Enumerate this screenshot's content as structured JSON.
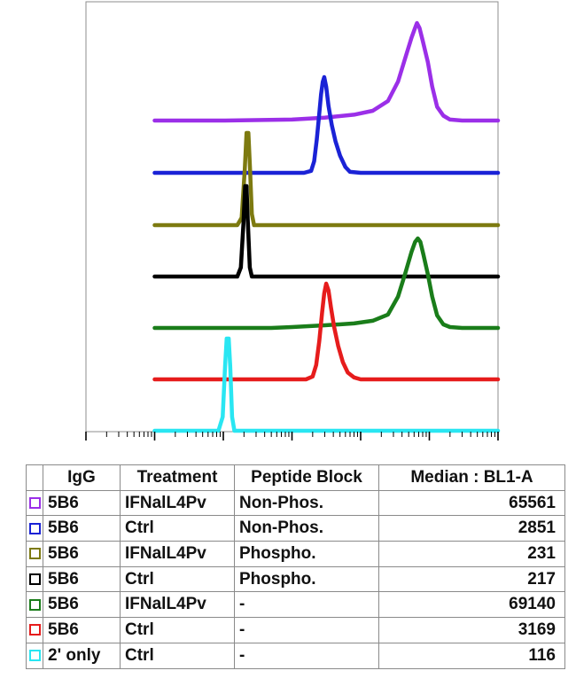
{
  "chart_data": {
    "type": "histogram",
    "scale": "log",
    "xlim": [
      1,
      1000000
    ],
    "xlabel": "",
    "ylabel": "",
    "title": "",
    "series": [
      {
        "igg": "5B6",
        "treatment": "IFNalL4Pv",
        "peptide_block": "Non-Phos.",
        "median": "65561",
        "color": "#9b2fe8",
        "points": [
          [
            10,
            0
          ],
          [
            100,
            0
          ],
          [
            1000,
            0.01
          ],
          [
            3000,
            0.03
          ],
          [
            8000,
            0.06
          ],
          [
            15000,
            0.1
          ],
          [
            25000,
            0.2
          ],
          [
            35000,
            0.4
          ],
          [
            45000,
            0.65
          ],
          [
            55000,
            0.85
          ],
          [
            62000,
            0.95
          ],
          [
            66000,
            1.0
          ],
          [
            72000,
            0.95
          ],
          [
            80000,
            0.82
          ],
          [
            95000,
            0.6
          ],
          [
            110000,
            0.35
          ],
          [
            130000,
            0.14
          ],
          [
            160000,
            0.05
          ],
          [
            200000,
            0.01
          ],
          [
            300000,
            0
          ],
          [
            1000000,
            0
          ]
        ]
      },
      {
        "igg": "5B6",
        "treatment": "Ctrl",
        "peptide_block": "Non-Phos.",
        "median": "2851",
        "color": "#1a22d6",
        "points": [
          [
            10,
            0
          ],
          [
            1500,
            0
          ],
          [
            1900,
            0.02
          ],
          [
            2100,
            0.12
          ],
          [
            2300,
            0.35
          ],
          [
            2500,
            0.62
          ],
          [
            2650,
            0.82
          ],
          [
            2800,
            0.95
          ],
          [
            2950,
            1.0
          ],
          [
            3150,
            0.9
          ],
          [
            3400,
            0.7
          ],
          [
            3800,
            0.5
          ],
          [
            4300,
            0.33
          ],
          [
            5000,
            0.18
          ],
          [
            6000,
            0.06
          ],
          [
            7000,
            0.01
          ],
          [
            10000,
            0
          ],
          [
            1000000,
            0
          ]
        ]
      },
      {
        "igg": "5B6",
        "treatment": "IFNalL4Pv",
        "peptide_block": "Phospho.",
        "median": "231",
        "color": "#7d7a10",
        "points": [
          [
            10,
            0
          ],
          [
            160,
            0
          ],
          [
            185,
            0.08
          ],
          [
            205,
            0.6
          ],
          [
            218,
            1.0
          ],
          [
            232,
            1.0
          ],
          [
            245,
            0.6
          ],
          [
            260,
            0.12
          ],
          [
            280,
            0
          ],
          [
            1000000,
            0
          ]
        ]
      },
      {
        "igg": "5B6",
        "treatment": "Ctrl",
        "peptide_block": "Phospho.",
        "median": "217",
        "color": "#000000",
        "points": [
          [
            10,
            0
          ],
          [
            160,
            0
          ],
          [
            180,
            0.1
          ],
          [
            197,
            0.6
          ],
          [
            208,
            1.0
          ],
          [
            218,
            1.0
          ],
          [
            228,
            0.6
          ],
          [
            243,
            0.1
          ],
          [
            260,
            0
          ],
          [
            1000000,
            0
          ]
        ]
      },
      {
        "igg": "5B6",
        "treatment": "IFNalL4Pv",
        "peptide_block": "-",
        "median": "69140",
        "color": "#1a7d1a",
        "points": [
          [
            10,
            0
          ],
          [
            500,
            0
          ],
          [
            1000,
            0.01
          ],
          [
            3000,
            0.03
          ],
          [
            8000,
            0.05
          ],
          [
            15000,
            0.08
          ],
          [
            25000,
            0.15
          ],
          [
            35000,
            0.35
          ],
          [
            45000,
            0.62
          ],
          [
            55000,
            0.85
          ],
          [
            62000,
            0.96
          ],
          [
            68000,
            1.0
          ],
          [
            74000,
            0.96
          ],
          [
            82000,
            0.82
          ],
          [
            95000,
            0.6
          ],
          [
            110000,
            0.35
          ],
          [
            130000,
            0.14
          ],
          [
            160000,
            0.04
          ],
          [
            200000,
            0.01
          ],
          [
            300000,
            0
          ],
          [
            1000000,
            0
          ]
        ]
      },
      {
        "igg": "5B6",
        "treatment": "Ctrl",
        "peptide_block": "-",
        "median": "3169",
        "color": "#e61c1c",
        "points": [
          [
            10,
            0
          ],
          [
            1600,
            0
          ],
          [
            2000,
            0.03
          ],
          [
            2250,
            0.15
          ],
          [
            2500,
            0.4
          ],
          [
            2750,
            0.7
          ],
          [
            2950,
            0.9
          ],
          [
            3150,
            1.0
          ],
          [
            3400,
            0.93
          ],
          [
            3700,
            0.75
          ],
          [
            4100,
            0.55
          ],
          [
            4700,
            0.35
          ],
          [
            5500,
            0.18
          ],
          [
            6500,
            0.07
          ],
          [
            8000,
            0.02
          ],
          [
            10000,
            0
          ],
          [
            1000000,
            0
          ]
        ]
      },
      {
        "igg": "2' only",
        "treatment": "Ctrl",
        "peptide_block": "-",
        "median": "116",
        "color": "#29e6f2",
        "points": [
          [
            10,
            0
          ],
          [
            85,
            0
          ],
          [
            98,
            0.15
          ],
          [
            106,
            0.7
          ],
          [
            112,
            1.0
          ],
          [
            120,
            1.0
          ],
          [
            126,
            0.7
          ],
          [
            134,
            0.15
          ],
          [
            145,
            0
          ],
          [
            1000000,
            0
          ]
        ]
      }
    ]
  },
  "table": {
    "headers": [
      "IgG",
      "Treatment",
      "Peptide Block",
      "Median : BL1-A"
    ]
  }
}
